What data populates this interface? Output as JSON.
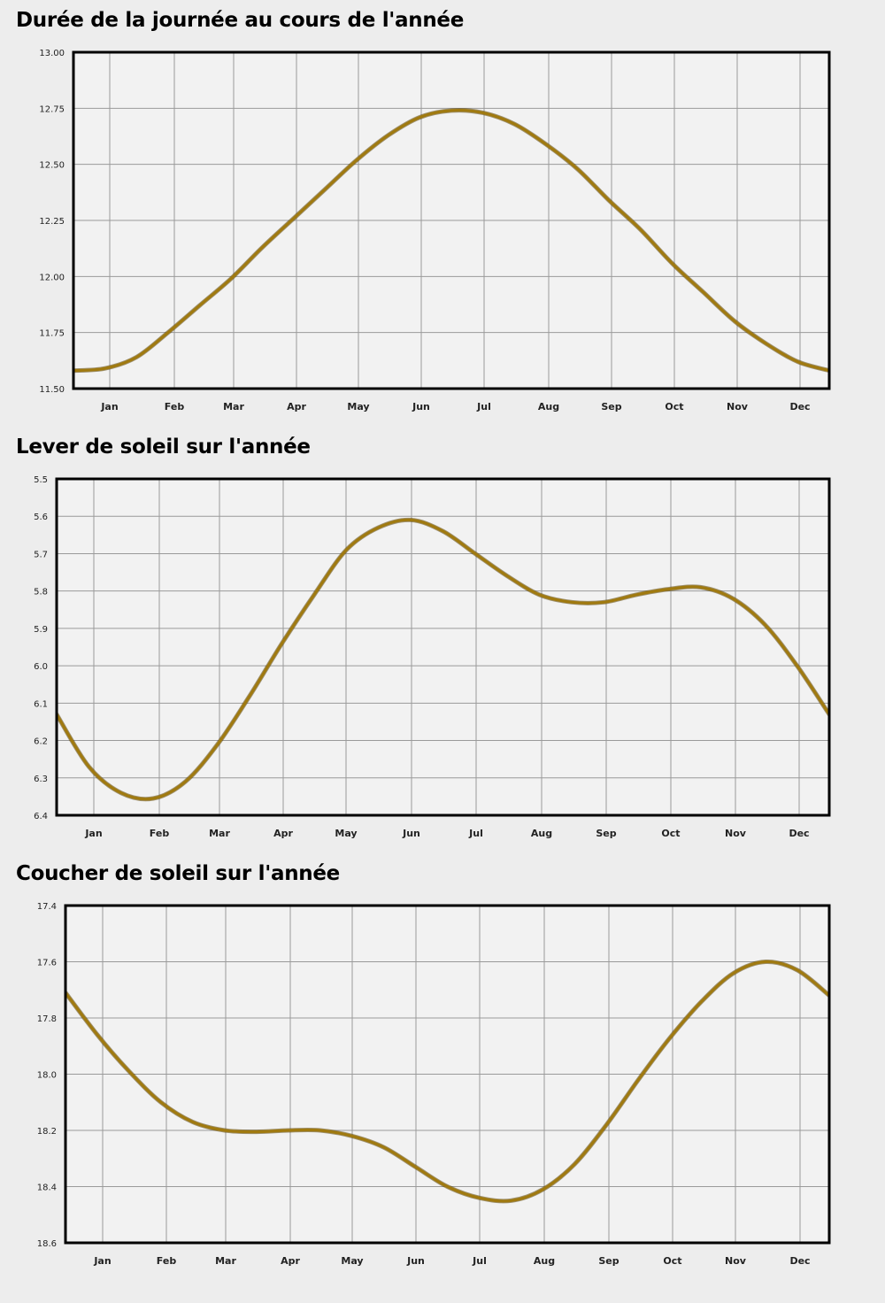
{
  "chart_data": [
    {
      "type": "line",
      "title": "Durée de la journée au cours de l'année",
      "xlabel": "",
      "ylabel": "",
      "categories": [
        "Jan",
        "Feb",
        "Mar",
        "Apr",
        "May",
        "Jun",
        "Jul",
        "Aug",
        "Sep",
        "Oct",
        "Nov",
        "Dec"
      ],
      "y_ticks": [
        "13.00",
        "12.75",
        "12.50",
        "12.25",
        "12.00",
        "11.75",
        "11.50"
      ],
      "ylim": [
        11.5,
        13.0
      ],
      "y_inverted": false,
      "grid": true,
      "line_color": "#a07a10",
      "x": [
        0,
        0.5,
        1,
        1.5,
        2,
        2.5,
        3,
        3.5,
        4,
        4.5,
        5,
        5.5,
        6,
        6.5,
        7,
        7.5,
        8,
        8.5,
        9,
        9.5,
        10,
        10.5,
        11,
        11.5,
        12
      ],
      "values": [
        11.58,
        11.59,
        11.64,
        11.75,
        11.87,
        11.99,
        12.13,
        12.26,
        12.39,
        12.52,
        12.63,
        12.71,
        12.74,
        12.73,
        12.68,
        12.59,
        12.48,
        12.34,
        12.21,
        12.06,
        11.93,
        11.8,
        11.7,
        11.62,
        11.58
      ]
    },
    {
      "type": "line",
      "title": "Lever de soleil sur l'année",
      "xlabel": "",
      "ylabel": "",
      "categories": [
        "Jan",
        "Feb",
        "Mar",
        "Apr",
        "May",
        "Jun",
        "Jul",
        "Aug",
        "Sep",
        "Oct",
        "Nov",
        "Dec"
      ],
      "y_ticks": [
        "5.5",
        "5.6",
        "5.7",
        "5.8",
        "5.9",
        "6.0",
        "6.1",
        "6.2",
        "6.3",
        "6.4"
      ],
      "ylim": [
        5.5,
        6.4
      ],
      "y_inverted": true,
      "grid": true,
      "line_color": "#a07a10",
      "x": [
        0,
        0.5,
        1,
        1.5,
        2,
        2.5,
        3,
        3.5,
        4,
        4.5,
        5,
        5.5,
        6,
        6.5,
        7,
        7.5,
        8,
        8.5,
        9,
        9.5,
        10,
        10.5,
        11,
        11.5,
        12
      ],
      "values": [
        6.13,
        6.27,
        6.34,
        6.355,
        6.31,
        6.21,
        6.08,
        5.94,
        5.81,
        5.69,
        5.63,
        5.61,
        5.64,
        5.7,
        5.76,
        5.81,
        5.83,
        5.83,
        5.81,
        5.795,
        5.79,
        5.82,
        5.89,
        6.0,
        6.13
      ]
    },
    {
      "type": "line",
      "title": "Coucher de soleil sur l'année",
      "xlabel": "",
      "ylabel": "",
      "categories": [
        "Jan",
        "Feb",
        "Mar",
        "Apr",
        "May",
        "Jun",
        "Jul",
        "Aug",
        "Sep",
        "Oct",
        "Nov",
        "Dec"
      ],
      "y_ticks": [
        "17.4",
        "17.6",
        "17.8",
        "18.0",
        "18.2",
        "18.4",
        "18.6"
      ],
      "ylim": [
        17.4,
        18.6
      ],
      "y_inverted": true,
      "grid": true,
      "line_color": "#a07a10",
      "x": [
        0,
        0.5,
        1,
        1.5,
        2,
        2.5,
        3,
        3.5,
        4,
        4.5,
        5,
        5.5,
        6,
        6.5,
        7,
        7.5,
        8,
        8.5,
        9,
        9.5,
        10,
        10.5,
        11,
        11.5,
        12
      ],
      "values": [
        17.71,
        17.86,
        17.99,
        18.1,
        18.17,
        18.2,
        18.205,
        18.2,
        18.2,
        18.22,
        18.26,
        18.33,
        18.4,
        18.44,
        18.45,
        18.41,
        18.32,
        18.18,
        18.02,
        17.87,
        17.74,
        17.64,
        17.6,
        17.63,
        17.72
      ]
    }
  ]
}
